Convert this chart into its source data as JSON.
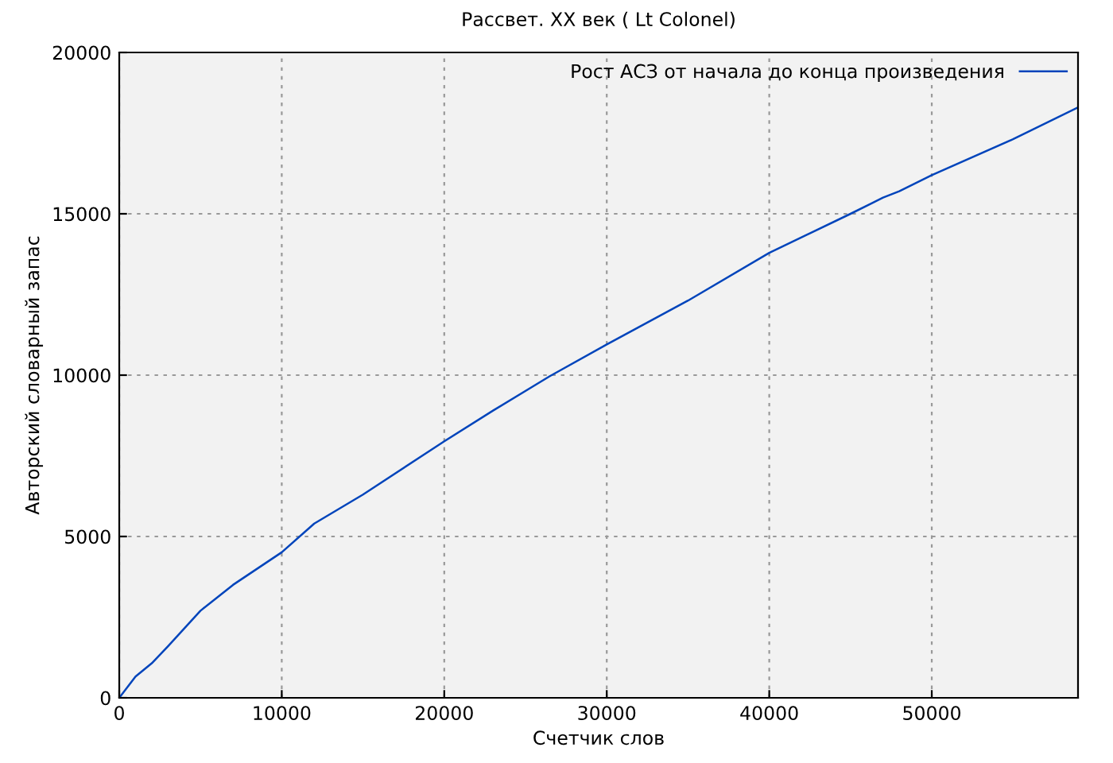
{
  "chart_data": {
    "type": "line",
    "title": "Рассвет. XX век ( Lt Colonel)",
    "xlabel": "Счетчик слов",
    "ylabel": "Авторский словарный запас",
    "x": [
      0,
      1000,
      2000,
      3000,
      5000,
      7000,
      10000,
      12000,
      15000,
      20000,
      23000,
      26500,
      30000,
      35000,
      40000,
      45000,
      47000,
      48000,
      50000,
      55000,
      59000
    ],
    "series": [
      {
        "name": "Рост АСЗ от начала до конца произведения",
        "color": "#0044bb",
        "values": [
          0,
          660,
          1070,
          1600,
          2700,
          3500,
          4510,
          5400,
          6300,
          7950,
          8900,
          9970,
          10950,
          12310,
          13790,
          15000,
          15500,
          15700,
          16200,
          17310,
          18300
        ]
      }
    ],
    "xlim": [
      0,
      59000
    ],
    "ylim": [
      0,
      20000
    ],
    "xticks": [
      0,
      10000,
      20000,
      30000,
      40000,
      50000
    ],
    "yticks": [
      0,
      5000,
      10000,
      15000,
      20000
    ],
    "grid": true,
    "legend": "top right",
    "line_style": "solid",
    "marker": "none"
  }
}
